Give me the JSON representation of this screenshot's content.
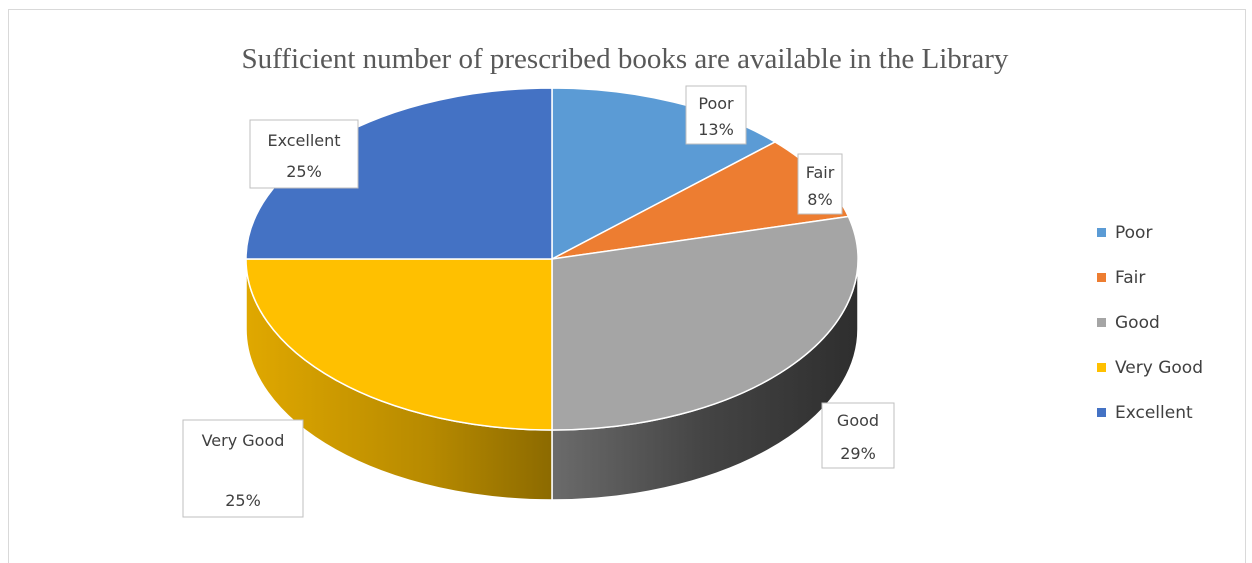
{
  "chart_data": {
    "type": "pie",
    "title": "Sufficient number of prescribed books are available in the Library",
    "categories": [
      "Poor",
      "Fair",
      "Good",
      "Very Good",
      "Excellent"
    ],
    "values": [
      13,
      8,
      29,
      25,
      25
    ],
    "value_labels": [
      "13%",
      "8%",
      "29%",
      "25%",
      "25%"
    ],
    "colors": [
      "#5b9bd5",
      "#ed7d31",
      "#a5a5a5",
      "#ffc000",
      "#4472c4"
    ],
    "side_colors": [
      "#2e75b6",
      "#c55a11",
      "#444444",
      "#bf9000",
      "#2f5597"
    ],
    "style": "3d",
    "legend_position": "right"
  }
}
